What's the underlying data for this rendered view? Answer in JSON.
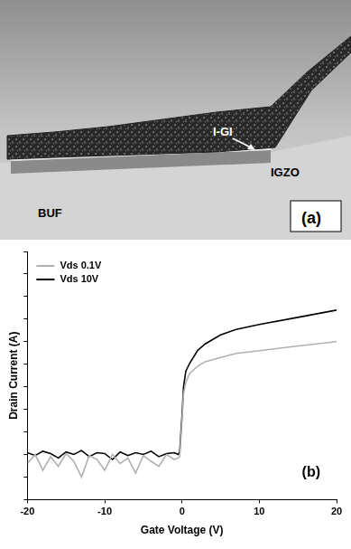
{
  "micrograph": {
    "labels": [
      "I-GI",
      "IGZO",
      "BUF"
    ],
    "annotations": [
      "(a)"
    ]
  },
  "chart_data": {
    "type": "line",
    "annotations": [
      "(b)"
    ],
    "x_label": "Gate Voltage (V)",
    "y_label": "Drain Current (A)",
    "x": [
      -20,
      -19,
      -18,
      -17,
      -16,
      -15,
      -14,
      -13,
      -12,
      -11,
      -10,
      -9,
      -8,
      -7,
      -6,
      -5,
      -4,
      -3,
      -2,
      -1,
      -0.5,
      -0.3,
      0,
      0.2,
      0.5,
      1,
      2,
      3,
      5,
      7,
      10,
      15,
      20
    ],
    "series": [
      {
        "name": "Vds 0.1V",
        "color": "#b0b0b0",
        "marker": "none",
        "line_style": "solid",
        "values": [
          4e-13,
          1e-12,
          2e-13,
          8e-13,
          3e-13,
          1.1e-12,
          5e-13,
          1e-13,
          9e-13,
          6e-13,
          2e-13,
          1e-12,
          4e-13,
          7e-13,
          1.5e-13,
          9e-13,
          5e-13,
          3e-13,
          1e-12,
          6e-13,
          7e-13,
          8e-13,
          3e-11,
          5e-10,
          1.6e-09,
          4e-09,
          8e-09,
          1.3e-08,
          2e-08,
          3e-08,
          4e-08,
          6.5e-08,
          1e-07
        ]
      },
      {
        "name": "Vds 10V",
        "color": "#000000",
        "marker": "none",
        "line_style": "solid",
        "values": [
          1.2e-12,
          9e-13,
          1.4e-12,
          1.1e-12,
          7e-13,
          1.3e-12,
          1e-12,
          1.5e-12,
          8e-13,
          1.2e-12,
          1.1e-12,
          6e-13,
          1.3e-12,
          9e-13,
          1.2e-12,
          1e-12,
          1.4e-12,
          8e-13,
          1.1e-12,
          1.2e-12,
          1e-12,
          1.3e-12,
          5e-11,
          1e-09,
          5e-09,
          1.1e-08,
          4e-08,
          8e-08,
          2e-07,
          3.5e-07,
          5.8e-07,
          1.2e-06,
          2.5e-06
        ]
      }
    ],
    "xlim": [
      -20,
      20
    ],
    "xticks": [
      -20,
      -10,
      0,
      10,
      20
    ],
    "ylim": [
      1e-14,
      0.001
    ],
    "yticks": [
      1e-14,
      1e-13,
      1e-12,
      1e-11,
      1e-10,
      1e-09,
      1e-08,
      1e-07,
      1e-06,
      1e-05,
      0.0001,
      0.001
    ],
    "log": "y",
    "grid": false,
    "tick_labels": "x",
    "legend": "upper left"
  }
}
